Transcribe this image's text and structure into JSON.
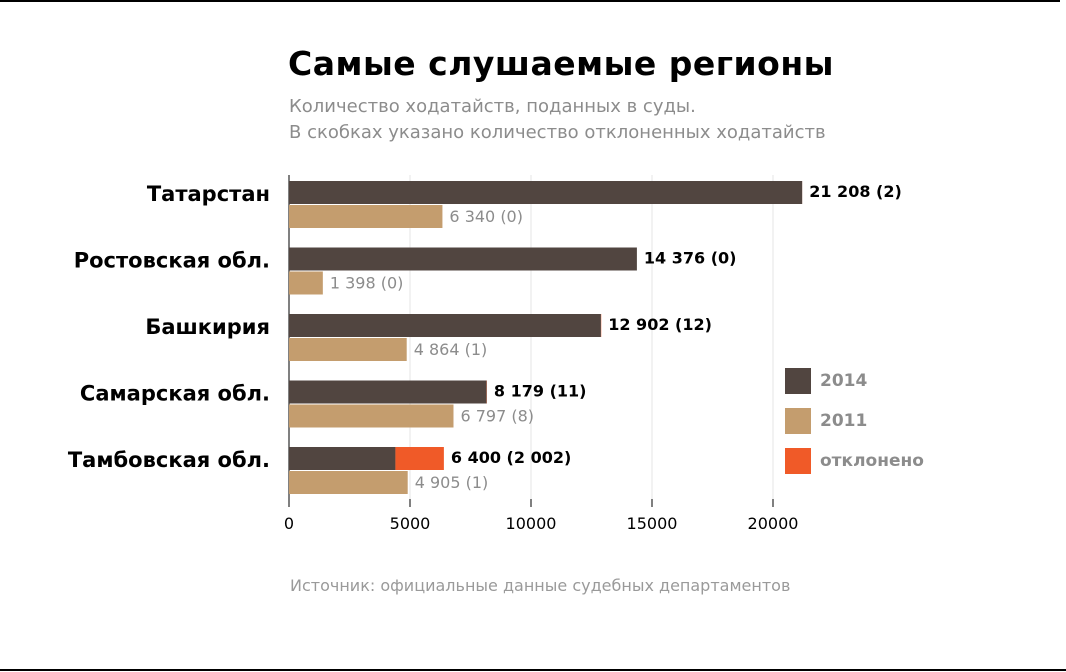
{
  "header": {
    "title": "Самые слушаемые регионы",
    "subtitle_line1": "Количество ходатайств, поданных в суды.",
    "subtitle_line2": "В скобках указано количество отклоненных ходатайств"
  },
  "footer": {
    "source": "Источник: официальные данные судебных департаментов"
  },
  "colors": {
    "series_2014": "#514540",
    "series_2011": "#c49d6e",
    "rejected": "#f05a28",
    "label_2014": "#000000",
    "label_2011": "#8c8c8c",
    "axis": "#000000",
    "grid": "#e6e6e6"
  },
  "legend": [
    {
      "label": "2014",
      "color": "#514540"
    },
    {
      "label": "2011",
      "color": "#c49d6e"
    },
    {
      "label": "отклонено",
      "color": "#f05a28"
    }
  ],
  "chart_data": {
    "type": "bar",
    "orientation": "horizontal",
    "categories": [
      "Татарстан",
      "Ростовская обл.",
      "Башкирия",
      "Самарская обл.",
      "Тамбовская обл."
    ],
    "series": [
      {
        "name": "2014",
        "values": [
          21208,
          14376,
          12902,
          8179,
          6400
        ],
        "rejected": [
          2,
          0,
          12,
          11,
          2002
        ],
        "labels": [
          "21 208 (2)",
          "14 376 (0)",
          "12 902 (12)",
          "8 179 (11)",
          "6 400 (2 002)"
        ]
      },
      {
        "name": "2011",
        "values": [
          6340,
          1398,
          4864,
          6797,
          4905
        ],
        "rejected": [
          0,
          0,
          1,
          8,
          1
        ],
        "labels": [
          "6 340 (0)",
          "1 398 (0)",
          "4 864 (1)",
          "6 797 (8)",
          "4 905 (1)"
        ]
      }
    ],
    "xlim": [
      0,
      22000
    ],
    "xticks": [
      0,
      5000,
      10000,
      15000,
      20000
    ],
    "xtick_labels": [
      "0",
      "5000",
      "10000",
      "15000",
      "20000"
    ],
    "grid": true,
    "legend_position": "right"
  }
}
